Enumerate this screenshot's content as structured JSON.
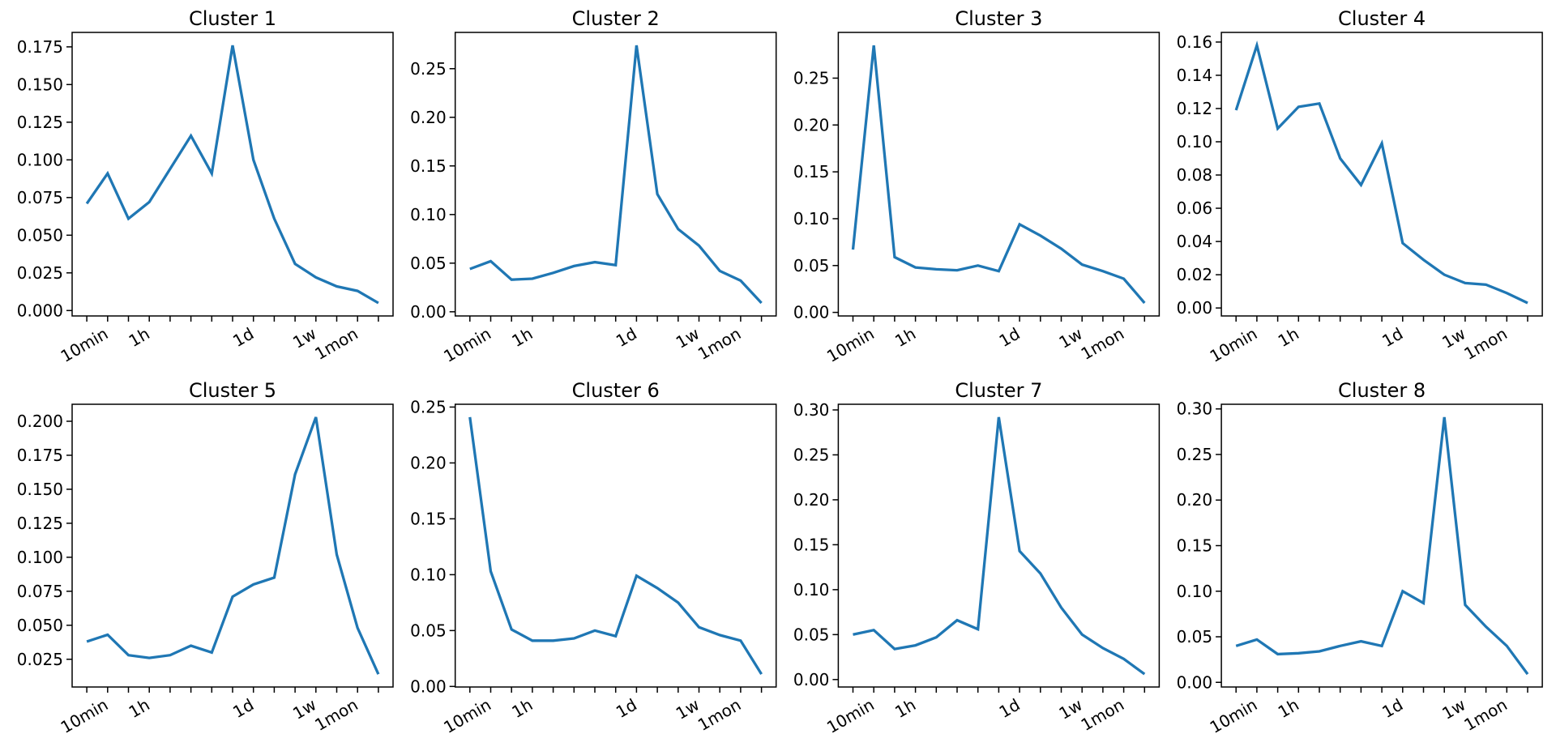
{
  "figure": {
    "background": "#ffffff",
    "line_color": "#1f77b4",
    "axis_color": "#000000",
    "font_color": "#000000"
  },
  "x_axis": {
    "num_points": 15,
    "tick_labels": [
      "",
      "10min",
      "",
      "1h",
      "",
      "",
      "",
      "",
      "1d",
      "",
      "",
      "1w",
      "",
      "1mon",
      ""
    ]
  },
  "chart_data": [
    {
      "type": "line",
      "title": "Cluster 1",
      "ylim": [
        -0.0036,
        0.1846
      ],
      "yticks": [
        "0.000",
        "0.025",
        "0.050",
        "0.075",
        "0.100",
        "0.125",
        "0.150",
        "0.175"
      ],
      "values": [
        0.071,
        0.091,
        0.061,
        0.072,
        0.094,
        0.116,
        0.091,
        0.176,
        0.1,
        0.061,
        0.031,
        0.022,
        0.016,
        0.013,
        0.005
      ]
    },
    {
      "type": "line",
      "title": "Cluster 2",
      "ylim": [
        -0.0043,
        0.2873
      ],
      "yticks": [
        "0.00",
        "0.05",
        "0.10",
        "0.15",
        "0.20",
        "0.25"
      ],
      "values": [
        0.044,
        0.052,
        0.033,
        0.034,
        0.04,
        0.047,
        0.051,
        0.048,
        0.274,
        0.121,
        0.085,
        0.068,
        0.042,
        0.032,
        0.009
      ]
    },
    {
      "type": "line",
      "title": "Cluster 3",
      "ylim": [
        -0.0038,
        0.2988
      ],
      "yticks": [
        "0.00",
        "0.05",
        "0.10",
        "0.15",
        "0.20",
        "0.25"
      ],
      "values": [
        0.067,
        0.285,
        0.059,
        0.048,
        0.046,
        0.045,
        0.05,
        0.044,
        0.094,
        0.082,
        0.068,
        0.051,
        0.044,
        0.036,
        0.01
      ]
    },
    {
      "type": "line",
      "title": "Cluster 4",
      "ylim": [
        -0.0048,
        0.1658
      ],
      "yticks": [
        "0.00",
        "0.02",
        "0.04",
        "0.06",
        "0.08",
        "0.10",
        "0.12",
        "0.14",
        "0.16"
      ],
      "values": [
        0.119,
        0.158,
        0.108,
        0.121,
        0.123,
        0.09,
        0.074,
        0.099,
        0.039,
        0.029,
        0.02,
        0.015,
        0.014,
        0.009,
        0.003
      ]
    },
    {
      "type": "line",
      "title": "Cluster 5",
      "ylim": [
        0.0046,
        0.2125
      ],
      "yticks": [
        "0.025",
        "0.050",
        "0.075",
        "0.100",
        "0.125",
        "0.150",
        "0.175",
        "0.200"
      ],
      "values": [
        0.038,
        0.043,
        0.028,
        0.026,
        0.028,
        0.035,
        0.03,
        0.071,
        0.08,
        0.085,
        0.161,
        0.203,
        0.102,
        0.048,
        0.014
      ]
    },
    {
      "type": "line",
      "title": "Cluster 6",
      "ylim": [
        -0.0005,
        0.2525
      ],
      "yticks": [
        "0.00",
        "0.05",
        "0.10",
        "0.15",
        "0.20",
        "0.25"
      ],
      "values": [
        0.241,
        0.103,
        0.051,
        0.041,
        0.041,
        0.043,
        0.05,
        0.045,
        0.099,
        0.088,
        0.075,
        0.053,
        0.046,
        0.041,
        0.011
      ]
    },
    {
      "type": "line",
      "title": "Cluster 7",
      "ylim": [
        -0.0083,
        0.3063
      ],
      "yticks": [
        "0.00",
        "0.05",
        "0.10",
        "0.15",
        "0.20",
        "0.25",
        "0.30"
      ],
      "values": [
        0.05,
        0.055,
        0.034,
        0.038,
        0.047,
        0.066,
        0.056,
        0.292,
        0.143,
        0.118,
        0.08,
        0.05,
        0.035,
        0.023,
        0.006
      ]
    },
    {
      "type": "line",
      "title": "Cluster 8",
      "ylim": [
        -0.0051,
        0.3051
      ],
      "yticks": [
        "0.00",
        "0.05",
        "0.10",
        "0.15",
        "0.20",
        "0.25",
        "0.30"
      ],
      "values": [
        0.04,
        0.047,
        0.031,
        0.032,
        0.034,
        0.04,
        0.045,
        0.04,
        0.1,
        0.087,
        0.291,
        0.085,
        0.061,
        0.04,
        0.009
      ]
    }
  ]
}
